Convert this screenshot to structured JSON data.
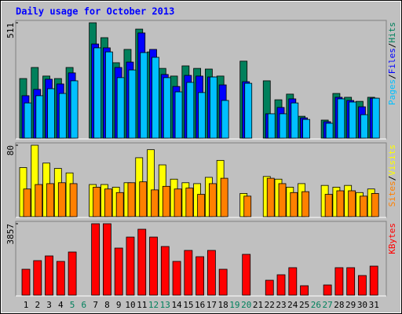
{
  "chart_data": [
    {
      "type": "bar",
      "title": "Daily usage for October 2013",
      "ylim": [
        0,
        511
      ],
      "yticks": [
        511
      ],
      "legend_separator": "/",
      "series": [
        {
          "name": "Hits",
          "color": "#00805c",
          "values": [
            264,
            313,
            275,
            264,
            313,
            null,
            511,
            445,
            334,
            393,
            483,
            382,
            309,
            275,
            320,
            309,
            306,
            275,
            null,
            341,
            null,
            254,
            170,
            195,
            97,
            null,
            80,
            198,
            181,
            163,
            181
          ]
        },
        {
          "name": "Files",
          "color": "#0000ff",
          "values": [
            188,
            216,
            261,
            240,
            289,
            null,
            417,
            400,
            313,
            337,
            466,
            393,
            282,
            229,
            278,
            275,
            271,
            236,
            null,
            250,
            null,
            108,
            136,
            174,
            90,
            null,
            73,
            181,
            167,
            139,
            177
          ]
        },
        {
          "name": "Pages",
          "color": "#00c0ff",
          "values": [
            156,
            188,
            219,
            198,
            254,
            null,
            400,
            382,
            268,
            302,
            379,
            358,
            268,
            205,
            247,
            202,
            271,
            167,
            null,
            243,
            null,
            108,
            108,
            156,
            83,
            null,
            66,
            174,
            160,
            104,
            177
          ]
        }
      ]
    },
    {
      "type": "bar",
      "ylim": [
        0,
        80
      ],
      "yticks": [
        80
      ],
      "legend_separator": "/",
      "series": [
        {
          "name": "Visits",
          "color": "#ffff00",
          "values": [
            55,
            80,
            60,
            54,
            49,
            null,
            36,
            36,
            33,
            38,
            66,
            75,
            58,
            42,
            38,
            37,
            44,
            63,
            null,
            26,
            null,
            45,
            42,
            33,
            37,
            null,
            35,
            33,
            35,
            27,
            31
          ]
        },
        {
          "name": "Sites",
          "color": "#ff8000",
          "values": [
            31,
            36,
            37,
            38,
            37,
            null,
            33,
            31,
            27,
            38,
            39,
            30,
            34,
            31,
            32,
            25,
            37,
            43,
            null,
            23,
            null,
            43,
            37,
            27,
            28,
            null,
            25,
            29,
            29,
            23,
            26
          ]
        }
      ]
    },
    {
      "type": "bar",
      "ylim": [
        0,
        3857
      ],
      "yticks": [
        3857
      ],
      "legend_separator": "/",
      "categories": [
        "1",
        "2",
        "3",
        "4",
        "5",
        "6",
        "7",
        "8",
        "9",
        "10",
        "11",
        "12",
        "13",
        "14",
        "15",
        "16",
        "17",
        "18",
        "19",
        "20",
        "21",
        "22",
        "23",
        "24",
        "25",
        "26",
        "27",
        "28",
        "29",
        "30",
        "31"
      ],
      "label_colors": [
        "#000000",
        "#000000",
        "#000000",
        "#000000",
        "#00805c",
        "#00805c",
        "#000000",
        "#000000",
        "#000000",
        "#000000",
        "#000000",
        "#00805c",
        "#00805c",
        "#000000",
        "#000000",
        "#000000",
        "#000000",
        "#000000",
        "#00805c",
        "#00805c",
        "#000000",
        "#000000",
        "#000000",
        "#000000",
        "#000000",
        "#00805c",
        "#00805c",
        "#000000",
        "#000000",
        "#000000",
        "#000000"
      ],
      "series": [
        {
          "name": "KBytes",
          "color": "#ff0000",
          "values": [
            1399,
            1865,
            2119,
            1823,
            2331,
            null,
            3857,
            3857,
            2543,
            3136,
            3560,
            3136,
            2628,
            1823,
            2416,
            2077,
            2416,
            1399,
            null,
            2204,
            null,
            805,
            1102,
            1484,
            509,
            null,
            551,
            1484,
            1484,
            1060,
            1568
          ]
        }
      ]
    }
  ]
}
